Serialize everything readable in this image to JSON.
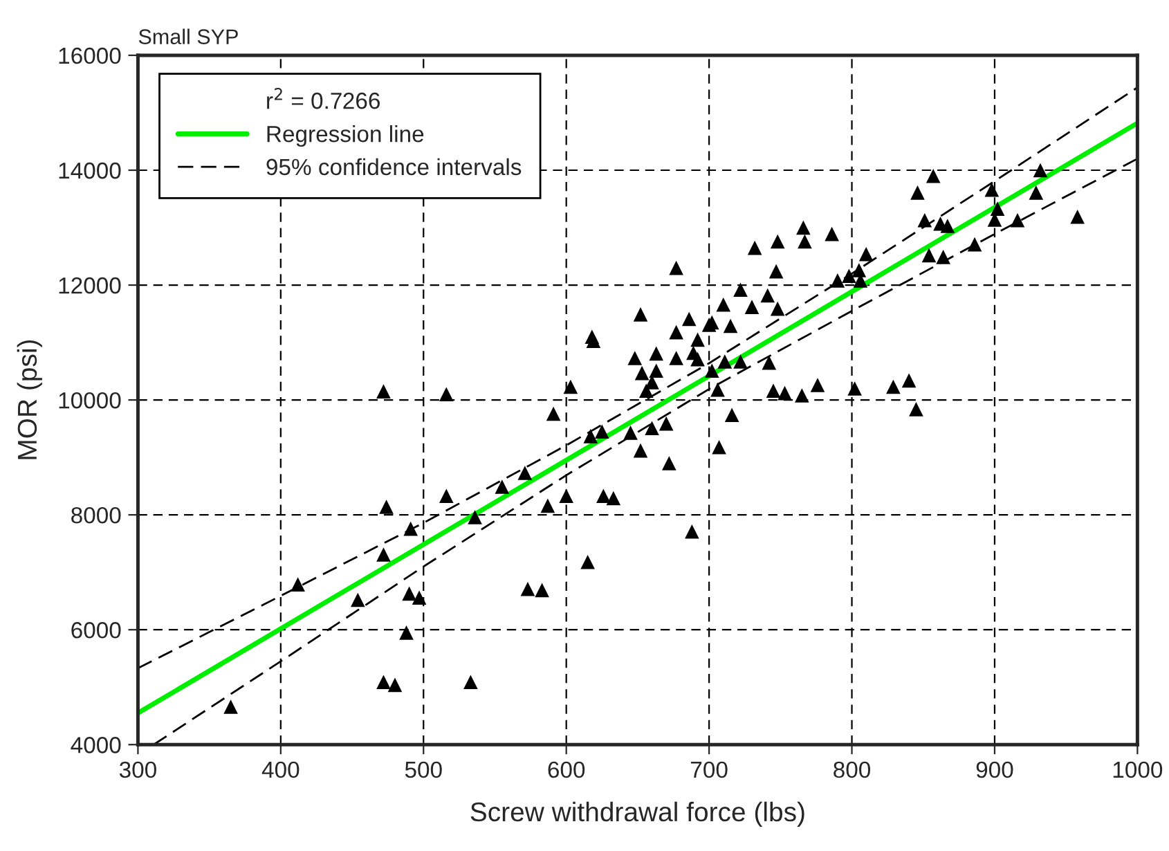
{
  "chart_data": {
    "type": "scatter",
    "title": "Small SYP",
    "xlabel": "Screw withdrawal force (lbs)",
    "ylabel": "MOR (psi)",
    "annotations": [
      "r$^{2}$ = 0.7266"
    ],
    "xlim": [
      300,
      1000
    ],
    "xticks": [
      300,
      400,
      500,
      600,
      700,
      800,
      900,
      1000
    ],
    "ylim": [
      4000,
      16000
    ],
    "yticks": [
      4000,
      6000,
      8000,
      10000,
      12000,
      14000,
      16000
    ],
    "grid": true,
    "legend": "top left",
    "series": [
      {
        "marker": "triangle",
        "color": "#000000",
        "x": [
          472,
          516,
          474,
          516,
          491,
          472,
          412,
          454,
          490,
          497,
          488,
          472,
          480,
          533,
          365,
          536,
          555,
          571,
          591,
          587,
          600,
          603,
          573,
          583,
          615,
          618,
          619,
          617,
          625,
          626,
          633,
          645,
          652,
          652,
          648,
          653,
          663,
          663,
          660,
          656,
          660,
          670,
          672,
          688,
          677,
          677,
          677,
          686,
          692,
          689,
          692,
          700,
          702,
          702,
          706,
          707,
          716,
          715,
          711,
          710,
          722,
          722,
          730,
          732,
          741,
          748,
          742,
          747,
          748,
          766,
          767,
          745,
          753,
          765,
          776,
          857,
          846,
          932,
          898,
          929,
          902,
          900,
          916,
          958,
          851,
          862,
          867,
          886,
          854,
          864,
          786,
          810,
          805,
          798,
          790,
          806,
          802,
          829,
          840,
          845
        ],
        "values": [
          10150,
          10100,
          8140,
          8330,
          7760,
          7310,
          6790,
          6520,
          6630,
          6560,
          5950,
          5090,
          5040,
          5090,
          4660,
          7960,
          8490,
          8730,
          9760,
          8160,
          8330,
          10230,
          6710,
          6690,
          7180,
          11100,
          11030,
          9370,
          9450,
          8330,
          8290,
          9430,
          9120,
          11490,
          10730,
          10470,
          10810,
          10510,
          10310,
          10160,
          9510,
          9590,
          8900,
          7710,
          12300,
          11180,
          10730,
          11410,
          11050,
          10820,
          10710,
          11310,
          11350,
          10510,
          10180,
          9180,
          9740,
          11290,
          10670,
          11660,
          10670,
          11920,
          11620,
          12650,
          11820,
          11590,
          10650,
          12240,
          12760,
          13000,
          12760,
          10160,
          10120,
          10080,
          10260,
          13900,
          13610,
          14000,
          13660,
          13610,
          13330,
          13140,
          13130,
          13190,
          13130,
          13070,
          13030,
          12710,
          12520,
          12490,
          12890,
          12540,
          12260,
          12160,
          12080,
          12080,
          10200,
          10230,
          10340,
          9840
        ]
      },
      {
        "type": "line",
        "name": "Regression line",
        "color": "#00ee00",
        "line_style": "solid",
        "marker": "none",
        "x": [
          300,
          1000
        ],
        "values": [
          4550,
          14820
        ]
      },
      {
        "type": "line",
        "name": "95% confidence intervals",
        "color": "#000000",
        "line_style": "dashed",
        "marker": "none",
        "x": [
          300,
          400,
          500,
          600,
          700,
          800,
          900,
          1000
        ],
        "values": [
          5330,
          6590,
          7860,
          9210,
          10640,
          12200,
          13810,
          15440
        ]
      },
      {
        "type": "line",
        "color": "#000000",
        "line_style": "dashed",
        "marker": "none",
        "x": [
          311,
          400,
          500,
          600,
          700,
          800,
          900,
          1000
        ],
        "values": [
          4000,
          5450,
          7100,
          8690,
          10190,
          11550,
          12890,
          14200
        ]
      }
    ]
  }
}
